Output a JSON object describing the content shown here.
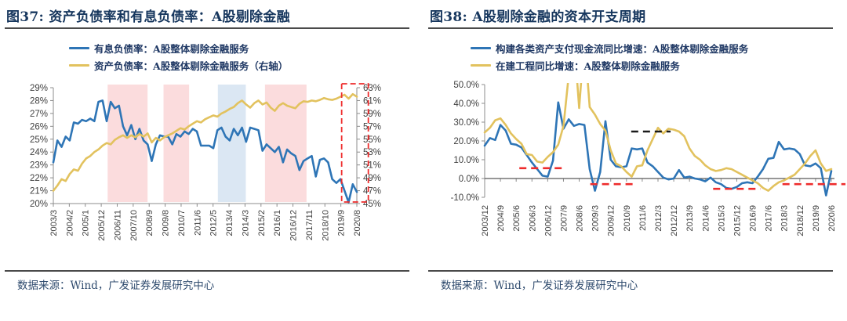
{
  "source_note": "数据来源：Wind，广发证券发展研究中心",
  "colors": {
    "series_blue": "#2e75b6",
    "series_yellow": "#e2c25e",
    "band_pink": "#fbdcdd",
    "band_blue": "#dbe7f3",
    "annotation_red": "#ee2c2c",
    "annotation_black": "#1a1a1a",
    "axis_gray": "#8c8c8c",
    "title_navy": "#17375e"
  },
  "chart_data": [
    {
      "type": "line",
      "title": "图37: 资产负债率和有息负债率：A股剔除金融",
      "legend_position": "top",
      "grid": false,
      "x_tick_labels": [
        "2003/3",
        "2004/2",
        "2005/1",
        "2005/12",
        "2006/11",
        "2007/10",
        "2008/9",
        "2009/8",
        "2010/7",
        "2011/6",
        "2012/5",
        "2013/4",
        "2014/3",
        "2015/2",
        "2016/1",
        "2016/12",
        "2017/11",
        "2018/10",
        "2019/9",
        "2020/8"
      ],
      "left_axis": {
        "min": 20,
        "max": 29,
        "step": 1,
        "suffix": "%",
        "decimals": 0
      },
      "right_axis": {
        "min": 45,
        "max": 63,
        "step": 2,
        "suffix": "%",
        "decimals": 0
      },
      "series": [
        {
          "name": "有息负债率：A股整体剔除金融服务",
          "axis": "left",
          "color": "#2e75b6",
          "values": [
            23.2,
            24.9,
            24.4,
            25.2,
            24.9,
            26.3,
            26.2,
            26.5,
            26.4,
            26.6,
            26.4,
            27.9,
            28.0,
            26.4,
            27.9,
            27.4,
            27.6,
            26.0,
            25.3,
            26.1,
            25.0,
            25.8,
            24.9,
            24.6,
            23.3,
            24.6,
            25.3,
            25.2,
            25.2,
            24.6,
            25.4,
            25.2,
            25.6,
            25.4,
            25.8,
            25.6,
            24.5,
            24.5,
            24.5,
            24.3,
            25.7,
            25.9,
            25.2,
            24.9,
            25.8,
            25.3,
            25.9,
            24.8,
            25.9,
            25.8,
            25.7,
            24.1,
            24.6,
            24.3,
            24.0,
            24.4,
            23.2,
            24.2,
            23.9,
            23.7,
            22.6,
            23.3,
            23.5,
            23.7,
            22.1,
            23.4,
            23.5,
            23.2,
            21.9,
            21.6,
            21.9,
            21.0,
            20.1,
            21.5,
            20.9
          ]
        },
        {
          "name": "资产负债率：A股整体剔除金融服务（右轴）",
          "axis": "right",
          "color": "#e2c25e",
          "values": [
            47.0,
            47.8,
            48.8,
            48.5,
            49.6,
            50.3,
            50.1,
            51.2,
            52.0,
            52.4,
            53.0,
            53.4,
            54.0,
            54.4,
            54.2,
            54.9,
            55.3,
            55.6,
            55.2,
            55.6,
            55.3,
            55.8,
            55.4,
            55.9,
            54.5,
            55.2,
            54.8,
            55.3,
            55.6,
            55.9,
            56.3,
            56.7,
            56.5,
            57.0,
            57.4,
            57.8,
            57.6,
            58.1,
            58.4,
            58.7,
            58.5,
            59.0,
            59.3,
            59.7,
            60.0,
            60.6,
            61.0,
            60.4,
            59.9,
            60.6,
            61.0,
            60.4,
            60.7,
            59.9,
            59.4,
            60.2,
            60.6,
            60.2,
            60.0,
            59.8,
            60.5,
            60.9,
            60.8,
            61.0,
            60.9,
            61.1,
            61.4,
            61.2,
            61.1,
            61.3,
            61.6,
            61.9,
            61.3,
            62.0,
            61.6
          ]
        }
      ],
      "bands": [
        {
          "color": "#fbdcdd",
          "from_tick": 3.4,
          "to_tick": 5.9
        },
        {
          "color": "#fbdcdd",
          "from_tick": 6.9,
          "to_tick": 8.5
        },
        {
          "color": "#dbe7f3",
          "from_tick": 10.3,
          "to_tick": 12.05
        },
        {
          "color": "#fbdcdd",
          "from_tick": 13.25,
          "to_tick": 15.85
        }
      ],
      "highlight_box": {
        "color": "#ee2c2c",
        "from_tick": 18.05,
        "to_tick": 19.72
      }
    },
    {
      "type": "line",
      "title": "图38: A股剔除金融的资本开支周期",
      "legend_position": "top",
      "grid": false,
      "zero_line": true,
      "x_tick_labels": [
        "2003/12",
        "2004/9",
        "2005/6",
        "2006/3",
        "2006/12",
        "2007/9",
        "2008/6",
        "2009/3",
        "2009/12",
        "2010/9",
        "2011/6",
        "2012/3",
        "2012/12",
        "2013/9",
        "2014/6",
        "2015/3",
        "2015/12",
        "2016/9",
        "2017/6",
        "2018/3",
        "2018/12",
        "2019/9",
        "2020/6"
      ],
      "left_axis": {
        "min": -10,
        "max": 50,
        "step": 10,
        "suffix": "%",
        "decimals": 1
      },
      "series": [
        {
          "name": "构建各类资产支付现金流同比增速：A股整体剔除金融服务",
          "axis": "left",
          "color": "#2e75b6",
          "values": [
            17.5,
            21.5,
            20.5,
            28.5,
            25.5,
            18.5,
            18.0,
            16.5,
            12.5,
            8.5,
            5.0,
            1.5,
            1.0,
            9.5,
            40.5,
            26.5,
            31.5,
            28.0,
            29.0,
            28.5,
            5.0,
            -6.5,
            3.5,
            30.5,
            10.0,
            6.5,
            6.0,
            6.5,
            16.0,
            15.5,
            16.0,
            8.5,
            6.5,
            3.5,
            0.5,
            -0.5,
            0.0,
            4.5,
            0.5,
            1.0,
            0.0,
            -0.5,
            -1.5,
            0.5,
            -2.0,
            -3.0,
            -5.0,
            -5.5,
            -4.5,
            -2.5,
            -2.0,
            -2.5,
            1.0,
            5.0,
            10.5,
            11.0,
            19.5,
            15.5,
            16.0,
            15.5,
            13.0,
            7.0,
            6.5,
            8.0,
            5.5,
            -9.0,
            4.0
          ]
        },
        {
          "name": "在建工程同比增速：A股整体剔除金融服务",
          "axis": "left",
          "color": "#e2c25e",
          "values": [
            24.5,
            27.0,
            31.0,
            32.0,
            28.5,
            24.0,
            21.0,
            18.5,
            13.0,
            12.5,
            9.0,
            8.5,
            11.5,
            14.0,
            18.0,
            28.0,
            55.0,
            75.0,
            37.5,
            75.0,
            38.0,
            34.0,
            29.0,
            25.5,
            15.0,
            8.0,
            6.5,
            3.5,
            1.0,
            6.5,
            7.0,
            15.0,
            21.0,
            27.0,
            24.0,
            26.5,
            26.0,
            25.0,
            22.5,
            16.0,
            12.0,
            10.0,
            7.0,
            5.0,
            4.0,
            4.5,
            5.5,
            5.0,
            3.5,
            2.0,
            0.5,
            -1.0,
            -2.5,
            -5.0,
            -6.5,
            -4.0,
            -2.0,
            -1.0,
            0.5,
            2.0,
            5.0,
            8.0,
            12.0,
            15.0,
            8.0,
            4.0,
            5.0
          ]
        }
      ],
      "annotations": [
        {
          "style": "dashed",
          "color": "#ee2c2c",
          "y": 5.5,
          "from_tick": 2.2,
          "to_tick": 4.9
        },
        {
          "style": "dashed",
          "color": "#ee2c2c",
          "y": -3.0,
          "from_tick": 6.7,
          "to_tick": 9.4
        },
        {
          "style": "dashed",
          "color": "#1a1a1a",
          "y": 25.0,
          "from_tick": 9.3,
          "to_tick": 11.8
        },
        {
          "style": "dashed",
          "color": "#ee2c2c",
          "y": -5.5,
          "from_tick": 14.5,
          "to_tick": 17.5
        },
        {
          "style": "dashed",
          "color": "#ee2c2c",
          "y": -3.0,
          "from_tick": 18.9,
          "to_tick": 22.9
        }
      ]
    }
  ]
}
